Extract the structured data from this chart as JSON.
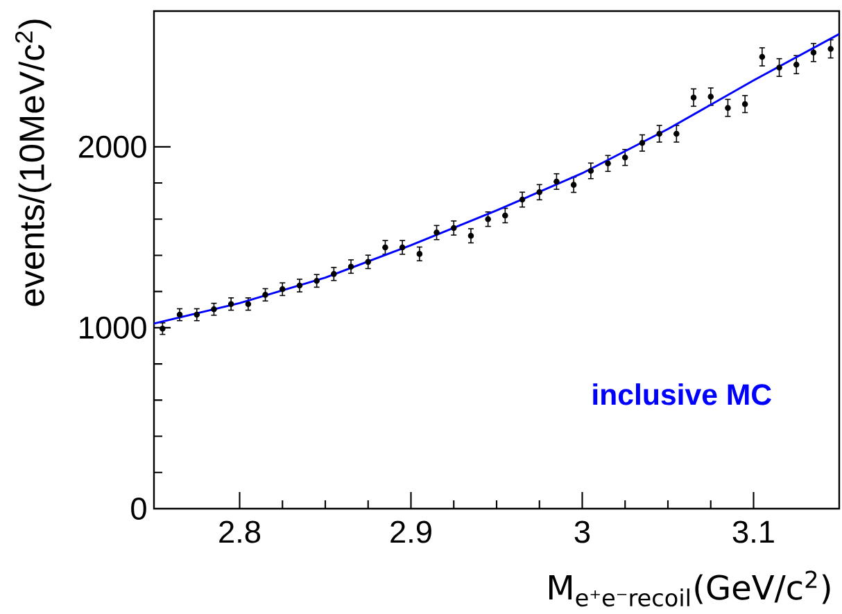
{
  "chart_data": {
    "type": "scatter",
    "xlabel": "M$_{e⁺e⁻recoil}$(GeV/c$^{2}$)",
    "ylabel": "events/(10MeV/c$^{2}$)",
    "annotations": [
      "inclusive MC"
    ],
    "x": [
      2.755,
      2.765,
      2.775,
      2.785,
      2.795,
      2.805,
      2.815,
      2.825,
      2.835,
      2.845,
      2.855,
      2.865,
      2.875,
      2.885,
      2.895,
      2.905,
      2.915,
      2.925,
      2.935,
      2.945,
      2.955,
      2.965,
      2.975,
      2.985,
      2.995,
      3.005,
      3.015,
      3.025,
      3.035,
      3.045,
      3.055,
      3.065,
      3.075,
      3.085,
      3.095,
      3.105,
      3.115,
      3.125,
      3.135,
      3.145
    ],
    "series": [
      {
        "type": "scatter",
        "color": "#000000",
        "values": [
          995,
          1072,
          1072,
          1102,
          1131,
          1131,
          1182,
          1213,
          1233,
          1259,
          1297,
          1338,
          1364,
          1444,
          1444,
          1408,
          1526,
          1551,
          1508,
          1600,
          1620,
          1708,
          1749,
          1808,
          1790,
          1867,
          1908,
          1941,
          2021,
          2072,
          2072,
          2272,
          2277,
          2215,
          2236,
          2497,
          2438,
          2454,
          2521,
          2541
        ],
        "errors": [
          32,
          33,
          33,
          33,
          34,
          34,
          34,
          35,
          35,
          35,
          36,
          37,
          37,
          38,
          38,
          38,
          39,
          39,
          39,
          40,
          40,
          41,
          42,
          43,
          42,
          43,
          44,
          44,
          45,
          46,
          46,
          48,
          48,
          47,
          47,
          50,
          49,
          50,
          50,
          50
        ]
      },
      {
        "type": "line",
        "color": "#0000ff",
        "marker": "none",
        "x": [
          2.75,
          2.8,
          2.85,
          2.9,
          2.95,
          3.0,
          3.05,
          3.1,
          3.15
        ],
        "values": [
          1023,
          1136,
          1277,
          1456,
          1648,
          1854,
          2098,
          2367,
          2623
        ]
      }
    ],
    "xlim": [
      2.75,
      3.15
    ],
    "ylim": [
      0,
      2750
    ],
    "xticks": [
      2.8,
      2.9,
      3,
      3.1
    ],
    "yticks": [
      0,
      1000,
      2000
    ],
    "grid": false,
    "marker": "circle"
  }
}
